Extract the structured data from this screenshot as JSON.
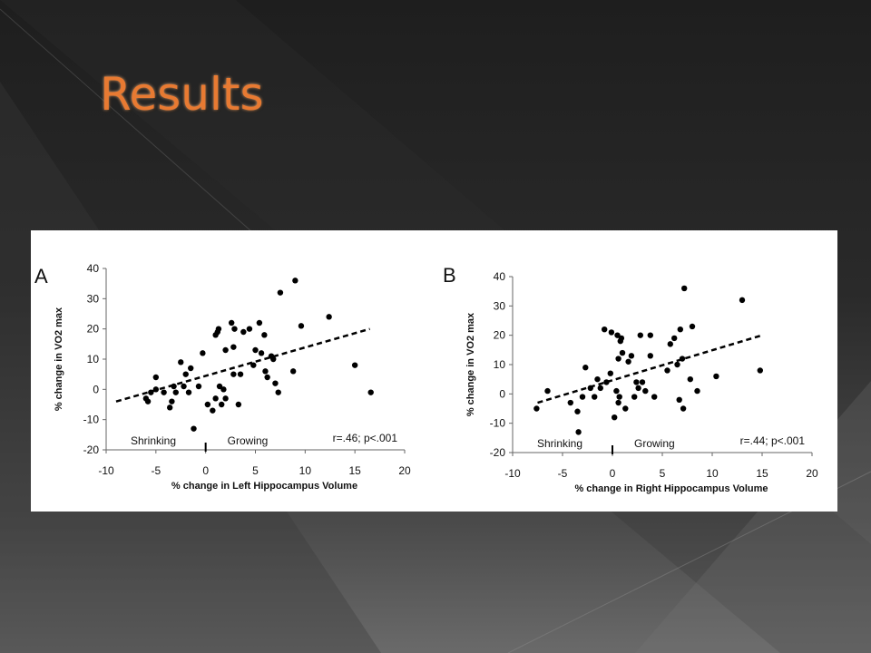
{
  "slide": {
    "title": "Results"
  },
  "colors": {
    "title": "#e87a32",
    "panel_bg": "#ffffff",
    "marker": "#000000"
  },
  "chart_data": [
    {
      "type": "scatter",
      "panel_label": "A",
      "xlabel": "% change in Left Hippocampus Volume",
      "ylabel": "% change in VO2 max",
      "xlim": [
        -10,
        20
      ],
      "ylim": [
        -20,
        40
      ],
      "xticks": [
        -10,
        -5,
        0,
        5,
        10,
        15,
        20
      ],
      "yticks": [
        -20,
        -10,
        0,
        10,
        20,
        30,
        40
      ],
      "annotations": {
        "left": "Shrinking",
        "right": "Growing",
        "stats": "r=.46; p<.001"
      },
      "trendline": {
        "style": "dashed",
        "x": [
          -9,
          16.5
        ],
        "y": [
          -4,
          20
        ]
      },
      "points": [
        [
          -6,
          -3
        ],
        [
          -5.8,
          -4
        ],
        [
          -5.5,
          -1
        ],
        [
          -5,
          4
        ],
        [
          -5,
          0
        ],
        [
          -4.2,
          -1
        ],
        [
          -3.6,
          -6
        ],
        [
          -3.4,
          -4
        ],
        [
          -3.2,
          1
        ],
        [
          -3,
          -1
        ],
        [
          -2.5,
          9
        ],
        [
          -2.2,
          1
        ],
        [
          -2,
          5
        ],
        [
          -1.7,
          -1
        ],
        [
          -1.5,
          7
        ],
        [
          -1.2,
          -13
        ],
        [
          -0.7,
          1
        ],
        [
          -0.3,
          12
        ],
        [
          0.2,
          -5
        ],
        [
          0.7,
          -7
        ],
        [
          1,
          -3
        ],
        [
          1,
          18
        ],
        [
          1.2,
          19
        ],
        [
          1.3,
          20
        ],
        [
          1.4,
          1
        ],
        [
          1.6,
          -5
        ],
        [
          1.8,
          0
        ],
        [
          2,
          13
        ],
        [
          2,
          -3
        ],
        [
          2.6,
          22
        ],
        [
          2.8,
          5
        ],
        [
          2.8,
          14
        ],
        [
          2.9,
          20
        ],
        [
          3.3,
          -5
        ],
        [
          3.5,
          5
        ],
        [
          3.8,
          19
        ],
        [
          4.4,
          20
        ],
        [
          4.8,
          8
        ],
        [
          5,
          13
        ],
        [
          5.4,
          22
        ],
        [
          5.6,
          12
        ],
        [
          5.9,
          18
        ],
        [
          6,
          6
        ],
        [
          6.2,
          4
        ],
        [
          6.6,
          11
        ],
        [
          6.8,
          10
        ],
        [
          7,
          2
        ],
        [
          7.3,
          -1
        ],
        [
          7.5,
          32
        ],
        [
          8.8,
          6
        ],
        [
          9,
          36
        ],
        [
          9.6,
          21
        ],
        [
          12.4,
          24
        ],
        [
          15,
          8
        ],
        [
          16.6,
          -1
        ]
      ]
    },
    {
      "type": "scatter",
      "panel_label": "B",
      "xlabel": "% change in Right Hippocampus Volume",
      "ylabel": "% change in VO2 max",
      "xlim": [
        -10,
        20
      ],
      "ylim": [
        -20,
        40
      ],
      "xticks": [
        -10,
        -5,
        0,
        5,
        10,
        15,
        20
      ],
      "yticks": [
        -20,
        -10,
        0,
        10,
        20,
        30,
        40
      ],
      "annotations": {
        "left": "Shrinking",
        "right": "Growing",
        "stats": "r=.44; p<.001"
      },
      "trendline": {
        "style": "dashed",
        "x": [
          -7.5,
          15
        ],
        "y": [
          -3,
          20
        ]
      },
      "points": [
        [
          -7.6,
          -5
        ],
        [
          -6.5,
          1
        ],
        [
          -4.2,
          -3
        ],
        [
          -3.5,
          -6
        ],
        [
          -3.4,
          -13
        ],
        [
          -3,
          -1
        ],
        [
          -2.7,
          9
        ],
        [
          -2.2,
          2
        ],
        [
          -1.8,
          -1
        ],
        [
          -1.5,
          5
        ],
        [
          -1.2,
          2
        ],
        [
          -0.8,
          22
        ],
        [
          -0.6,
          4
        ],
        [
          -0.2,
          7
        ],
        [
          -0.1,
          21
        ],
        [
          0.2,
          -8
        ],
        [
          0.4,
          1
        ],
        [
          0.5,
          20
        ],
        [
          0.6,
          12
        ],
        [
          0.6,
          -3
        ],
        [
          0.7,
          -1
        ],
        [
          0.8,
          18
        ],
        [
          0.9,
          19
        ],
        [
          1,
          14
        ],
        [
          1.3,
          -5
        ],
        [
          1.6,
          11
        ],
        [
          1.9,
          13
        ],
        [
          2.2,
          -1
        ],
        [
          2.4,
          4
        ],
        [
          2.6,
          2
        ],
        [
          2.8,
          20
        ],
        [
          3,
          4
        ],
        [
          3.3,
          1
        ],
        [
          3.8,
          20
        ],
        [
          3.8,
          13
        ],
        [
          4.2,
          -1
        ],
        [
          5.5,
          8
        ],
        [
          5.8,
          17
        ],
        [
          6.2,
          19
        ],
        [
          6.5,
          10
        ],
        [
          6.8,
          22
        ],
        [
          7,
          12
        ],
        [
          7.1,
          -5
        ],
        [
          7.2,
          36
        ],
        [
          7.8,
          5
        ],
        [
          8,
          23
        ],
        [
          8.5,
          1
        ],
        [
          10.4,
          6
        ],
        [
          13,
          32
        ],
        [
          14.8,
          8
        ],
        [
          6.7,
          -2
        ]
      ]
    }
  ]
}
